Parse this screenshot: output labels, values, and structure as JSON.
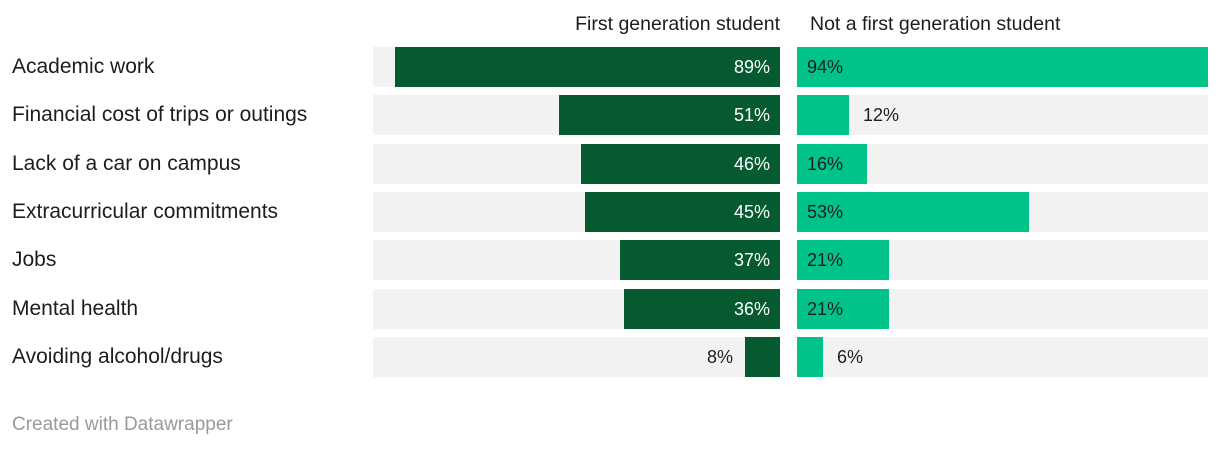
{
  "chart_data": {
    "type": "bar",
    "variant": "split-bars",
    "categories": [
      "Academic work",
      "Financial cost of trips or outings",
      "Lack of a car on campus",
      "Extracurricular commitments",
      "Jobs",
      "Mental health",
      "Avoiding alcohol/drugs"
    ],
    "series": [
      {
        "name": "First generation student",
        "values": [
          89,
          51,
          46,
          45,
          37,
          36,
          8
        ],
        "color": "#055a30",
        "bar_alignment": "right"
      },
      {
        "name": "Not a first generation student",
        "values": [
          94,
          12,
          16,
          53,
          21,
          21,
          6
        ],
        "color": "#00c389",
        "bar_alignment": "left"
      }
    ],
    "value_suffix": "%",
    "xlim": [
      0,
      94
    ],
    "grid": false,
    "legend_position": "column-headers",
    "track_color": "#f2f2f2",
    "title": "",
    "xlabel": "",
    "ylabel": ""
  },
  "colors": {
    "background": "#ffffff",
    "text": "#1d1d1d",
    "value_text_on_dark": "#ffffff",
    "value_text_on_light": "#1d1d1d",
    "track": "#f2f2f2",
    "footer_text": "#9a9a9a"
  },
  "footer": {
    "credit": "Created with Datawrapper"
  }
}
